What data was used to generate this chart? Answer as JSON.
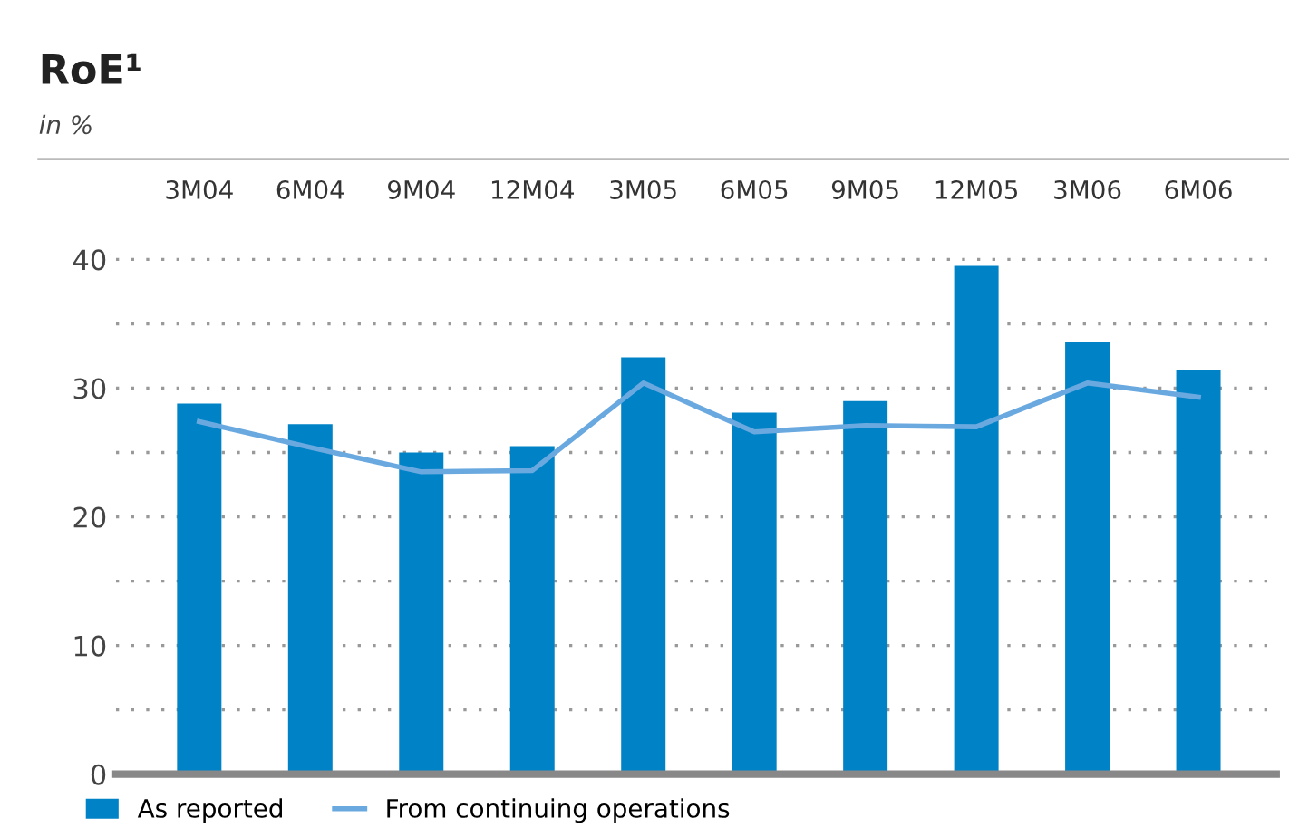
{
  "chart_data": {
    "type": "bar",
    "title": "RoE¹",
    "subtitle": "in %",
    "categories": [
      "3M04",
      "6M04",
      "9M04",
      "12M04",
      "3M05",
      "6M05",
      "9M05",
      "12M05",
      "3M06",
      "6M06"
    ],
    "series": [
      {
        "name": "As reported",
        "color": "#0083c6",
        "values": [
          28.8,
          27.2,
          25.0,
          25.5,
          32.4,
          28.1,
          29.0,
          39.5,
          33.6,
          31.4
        ]
      },
      {
        "name": "From continuing operations",
        "type": "line",
        "color": "#6aa9e0",
        "values": [
          27.4,
          25.4,
          23.5,
          23.6,
          30.4,
          26.6,
          27.1,
          27.0,
          30.4,
          29.3
        ]
      }
    ],
    "ylim": [
      0,
      40
    ],
    "yticks": [
      0,
      {
        "value": 5,
        "label": null
      },
      10,
      {
        "value": 15,
        "label": null
      },
      20,
      {
        "value": 25,
        "label": null
      },
      30,
      {
        "value": 35,
        "label": null
      },
      40
    ],
    "grid": "y",
    "legend": "bottom left",
    "marker": "none",
    "line_style": "solid"
  }
}
